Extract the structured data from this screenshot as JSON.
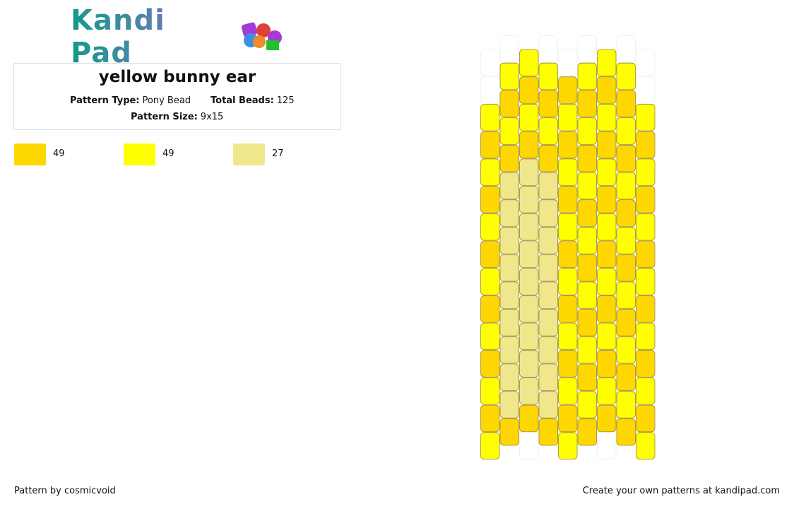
{
  "logo": "Kandi Pad",
  "header": {
    "title": "yellow bunny ear",
    "pattern_type_label": "Pattern Type:",
    "pattern_type": "Pony Bead",
    "total_beads_label": "Total Beads:",
    "total_beads": "125",
    "pattern_size_label": "Pattern Size:",
    "pattern_size": "9x15"
  },
  "colors": [
    {
      "color": "#ffd700",
      "count": "49"
    },
    {
      "color": "#ffff00",
      "count": "49"
    },
    {
      "color": "#f0e68c",
      "count": "27"
    }
  ],
  "footer": {
    "author": "Pattern by cosmicvoid",
    "credit": "Create your own patterns at kandipad.com"
  }
}
